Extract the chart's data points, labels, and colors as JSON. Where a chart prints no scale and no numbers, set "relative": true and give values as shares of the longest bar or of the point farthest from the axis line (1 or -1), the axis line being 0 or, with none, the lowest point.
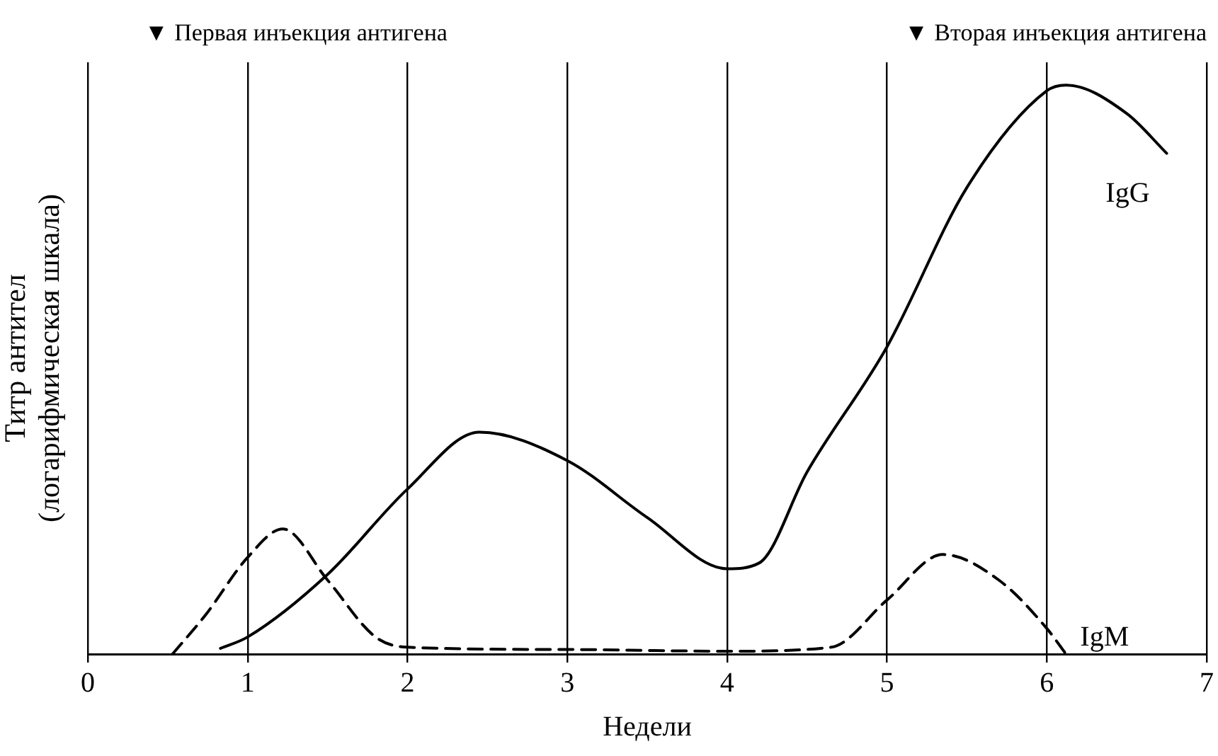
{
  "chart_data": {
    "type": "line",
    "relative": true,
    "xlabel": "Недели",
    "ylabel": "Титр антител\n(логарифмическая шкала)",
    "xlim": [
      0,
      7
    ],
    "xticks": [
      0,
      1,
      2,
      3,
      4,
      5,
      6,
      7
    ],
    "grid": "x",
    "legend": false,
    "marker": "none",
    "annotations": [
      "▼ Первая инъекция антигена",
      "▼ Вторая инъекция антигена"
    ],
    "series": [
      {
        "name": "IgG",
        "color": "#000000",
        "line_style": "solid",
        "x": [
          0.83,
          1,
          1.5,
          2,
          2.45,
          3,
          3.5,
          4,
          4.2,
          4.5,
          5,
          5.5,
          6,
          6.12,
          6.5,
          6.75
        ],
        "values": [
          0.01,
          0.03,
          0.14,
          0.29,
          0.39,
          0.34,
          0.24,
          0.15,
          0.16,
          0.32,
          0.54,
          0.82,
          0.99,
          1,
          0.95,
          0.88
        ]
      },
      {
        "name": "IgM",
        "color": "#000000",
        "line_style": "dashed",
        "x": [
          0.53,
          0.74,
          1,
          1.22,
          1.5,
          1.8,
          2,
          3,
          4,
          4.65,
          5,
          5.35,
          5.7,
          6,
          6.12
        ],
        "values": [
          0,
          0.07,
          0.17,
          0.22,
          0.13,
          0.03,
          0.012,
          0.008,
          0.005,
          0.012,
          0.095,
          0.175,
          0.13,
          0.045,
          0
        ]
      }
    ]
  }
}
